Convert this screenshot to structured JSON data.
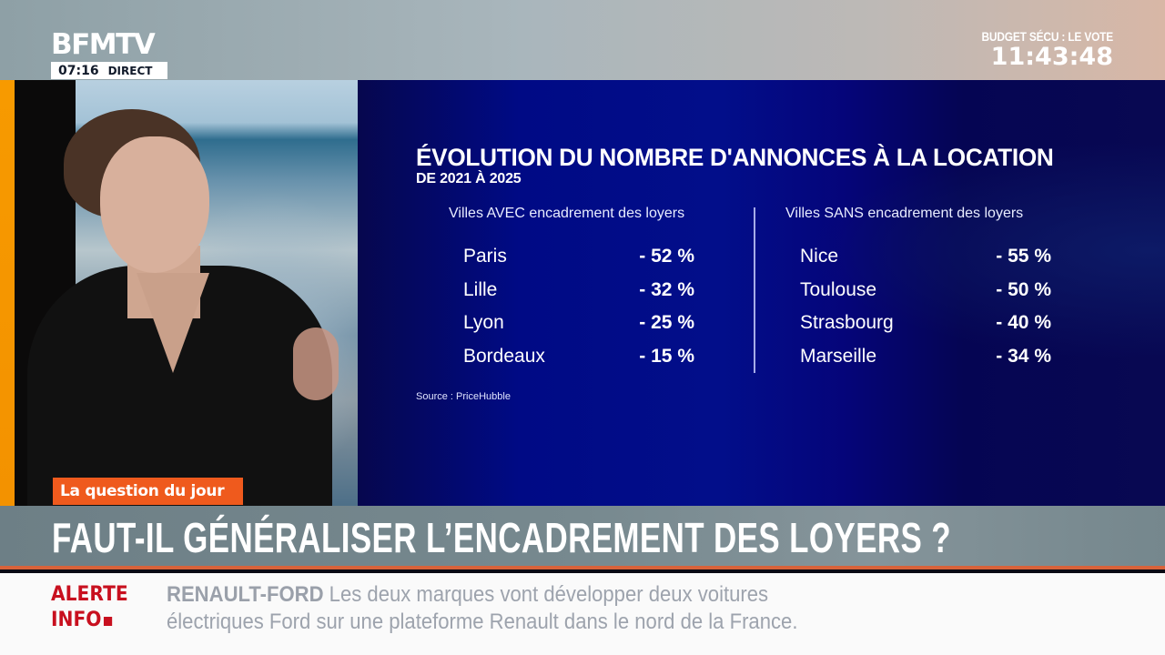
{
  "channel": {
    "logo": "BFMTV",
    "time": "07:16",
    "live_label": "DIRECT"
  },
  "top_right": {
    "label": "BUDGET SÉCU : LE VOTE",
    "countdown": "11:43:48"
  },
  "graphic": {
    "title": "ÉVOLUTION DU NOMBRE D'ANNONCES À LA LOCATION",
    "subtitle": "DE 2021 À 2025",
    "left_column": {
      "header": "Villes AVEC encadrement des loyers",
      "rows": [
        {
          "city": "Paris",
          "value": "- 52 %"
        },
        {
          "city": "Lille",
          "value": "- 32 %"
        },
        {
          "city": "Lyon",
          "value": "- 25 %"
        },
        {
          "city": "Bordeaux",
          "value": "- 15 %"
        }
      ]
    },
    "right_column": {
      "header": "Villes SANS encadrement des loyers",
      "rows": [
        {
          "city": "Nice",
          "value": "- 55 %"
        },
        {
          "city": "Toulouse",
          "value": "- 50 %"
        },
        {
          "city": "Strasbourg",
          "value": "- 40 %"
        },
        {
          "city": "Marseille",
          "value": "- 34 %"
        }
      ]
    },
    "source": "Source : PriceHubble"
  },
  "lower_third": {
    "tag": "La question du jour",
    "headline": "FAUT-IL GÉNÉRALISER L’ENCADREMENT DES LOYERS ?"
  },
  "ticker": {
    "alert_line1": "ALERTE",
    "alert_line2": "INFO",
    "topic": "RENAULT-FORD",
    "text_line1": "Les deux marques vont développer deux voitures",
    "text_line2": "électriques Ford sur une plateforme Renault dans le nord de la France."
  },
  "colors": {
    "panel_blue": "#020e8a",
    "tag_orange": "#ef5a1d",
    "alert_red": "#c8101f",
    "headline_gray": "#77898f"
  }
}
